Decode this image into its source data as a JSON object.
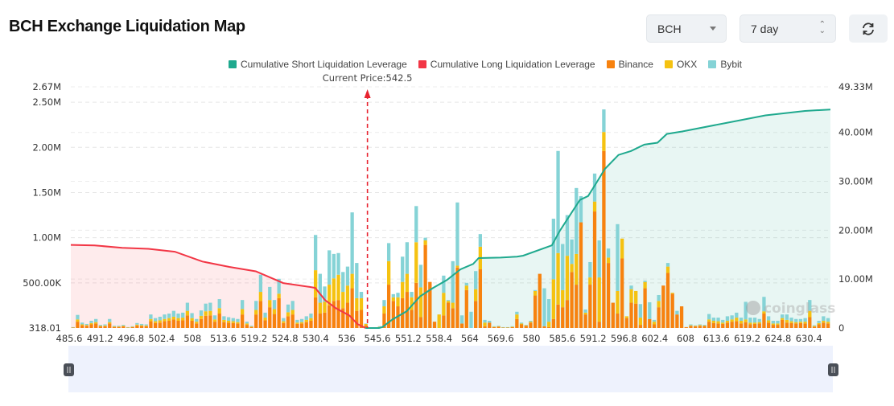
{
  "header": {
    "title": "BCH Exchange Liquidation Map",
    "symbol_select": "BCH",
    "range_select": "7 day",
    "refresh_icon": "refresh-icon"
  },
  "colors": {
    "short_cum": "#1fa98e",
    "long_cum": "#f23645",
    "binance": "#f7820f",
    "okx": "#f5c211",
    "bybit": "#85d3d6"
  },
  "chart_data": {
    "type": "bar",
    "legend": [
      "Cumulative Short Liquidation Leverage",
      "Cumulative Long Liquidation Leverage",
      "Binance",
      "OKX",
      "Bybit"
    ],
    "legend_position": "top",
    "current_price_label": "Current Price:542.5",
    "current_price": 542.5,
    "x_ticks": [
      "485.6",
      "491.2",
      "496.8",
      "502.4",
      "508",
      "513.6",
      "519.2",
      "524.8",
      "530.4",
      "536",
      "545.6",
      "551.2",
      "558.4",
      "564",
      "569.6",
      "580",
      "585.6",
      "591.2",
      "596.8",
      "602.4",
      "608",
      "613.6",
      "619.2",
      "624.8",
      "630.4"
    ],
    "y_left_ticks": [
      {
        "label": "318.01",
        "value": 0
      },
      {
        "label": "500.00K",
        "value": 500000
      },
      {
        "label": "1.00M",
        "value": 1000000
      },
      {
        "label": "1.50M",
        "value": 1500000
      },
      {
        "label": "2.00M",
        "value": 2000000
      },
      {
        "label": "2.50M",
        "value": 2500000
      },
      {
        "label": "2.67M",
        "value": 2670000
      }
    ],
    "y_left_range": [
      318.01,
      2670000
    ],
    "y_right_ticks": [
      {
        "label": "0",
        "value": 0
      },
      {
        "label": "10.00M",
        "value": 10000000
      },
      {
        "label": "20.00M",
        "value": 20000000
      },
      {
        "label": "30.00M",
        "value": 30000000
      },
      {
        "label": "40.00M",
        "value": 40000000
      },
      {
        "label": "49.33M",
        "value": 49330000
      }
    ],
    "y_right_range": [
      0,
      49330000
    ],
    "grid": true,
    "bar_series_order": [
      "Binance",
      "OKX",
      "Bybit"
    ],
    "bars_thousands": [
      [
        5,
        3,
        2
      ],
      [
        70,
        25,
        50
      ],
      [
        30,
        10,
        20
      ],
      [
        25,
        8,
        12
      ],
      [
        40,
        15,
        25
      ],
      [
        50,
        15,
        35
      ],
      [
        18,
        7,
        10
      ],
      [
        20,
        8,
        12
      ],
      [
        50,
        15,
        35
      ],
      [
        12,
        5,
        8
      ],
      [
        12,
        5,
        8
      ],
      [
        18,
        7,
        10
      ],
      [
        5,
        2,
        3
      ],
      [
        10,
        4,
        6
      ],
      [
        28,
        10,
        17
      ],
      [
        22,
        8,
        15
      ],
      [
        20,
        8,
        12
      ],
      [
        75,
        25,
        50
      ],
      [
        55,
        20,
        35
      ],
      [
        60,
        25,
        40
      ],
      [
        75,
        25,
        50
      ],
      [
        80,
        30,
        50
      ],
      [
        95,
        30,
        65
      ],
      [
        80,
        30,
        50
      ],
      [
        85,
        30,
        55
      ],
      [
        140,
        50,
        90
      ],
      [
        80,
        30,
        55
      ],
      [
        50,
        20,
        30
      ],
      [
        100,
        35,
        60
      ],
      [
        135,
        50,
        85
      ],
      [
        140,
        50,
        90
      ],
      [
        70,
        25,
        45
      ],
      [
        160,
        60,
        100
      ],
      [
        65,
        25,
        40
      ],
      [
        60,
        20,
        40
      ],
      [
        55,
        20,
        35
      ],
      [
        50,
        15,
        35
      ],
      [
        150,
        60,
        100
      ],
      [
        35,
        15,
        20
      ],
      [
        12,
        5,
        8
      ],
      [
        150,
        50,
        100
      ],
      [
        300,
        100,
        190
      ],
      [
        85,
        30,
        55
      ],
      [
        230,
        80,
        145
      ],
      [
        155,
        55,
        100
      ],
      [
        330,
        50,
        165
      ],
      [
        55,
        20,
        35
      ],
      [
        130,
        45,
        85
      ],
      [
        150,
        50,
        100
      ],
      [
        45,
        15,
        30
      ],
      [
        50,
        15,
        35
      ],
      [
        65,
        25,
        40
      ],
      [
        80,
        30,
        50
      ],
      [
        340,
        300,
        390
      ],
      [
        160,
        120,
        320
      ],
      [
        170,
        120,
        170
      ],
      [
        250,
        230,
        380
      ],
      [
        300,
        250,
        270
      ],
      [
        310,
        280,
        240
      ],
      [
        220,
        180,
        220
      ],
      [
        280,
        190,
        210
      ],
      [
        440,
        160,
        680
      ],
      [
        190,
        140,
        390
      ],
      [
        200,
        130,
        70
      ],
      [
        30,
        15,
        5
      ],
      [
        0,
        0,
        0
      ],
      [
        0,
        0,
        0
      ],
      [
        10,
        5,
        5
      ],
      [
        160,
        80,
        70
      ],
      [
        480,
        260,
        200
      ],
      [
        300,
        40,
        35
      ],
      [
        240,
        100,
        50
      ],
      [
        330,
        180,
        280
      ],
      [
        400,
        200,
        350
      ],
      [
        200,
        140,
        60
      ],
      [
        500,
        450,
        400
      ],
      [
        120,
        330,
        250
      ],
      [
        920,
        50,
        30
      ],
      [
        510,
        0,
        0
      ],
      [
        70,
        0,
        0
      ],
      [
        0,
        150,
        0
      ],
      [
        140,
        250,
        190
      ],
      [
        280,
        20,
        10
      ],
      [
        220,
        60,
        460
      ],
      [
        670,
        20,
        700
      ],
      [
        50,
        0,
        90
      ],
      [
        420,
        50,
        30
      ],
      [
        0,
        0,
        180
      ],
      [
        300,
        130,
        200
      ],
      [
        650,
        250,
        140
      ],
      [
        20,
        40,
        30
      ],
      [
        60,
        0,
        20
      ],
      [
        10,
        5,
        5
      ],
      [
        15,
        5,
        5
      ],
      [
        5,
        3,
        2
      ],
      [
        5,
        3,
        2
      ],
      [
        10,
        5,
        5
      ],
      [
        100,
        50,
        30
      ],
      [
        40,
        10,
        10
      ],
      [
        25,
        5,
        5
      ],
      [
        60,
        10,
        10
      ],
      [
        360,
        50,
        10
      ],
      [
        600,
        0,
        0
      ],
      [
        20,
        0,
        420
      ],
      [
        10,
        60,
        250
      ],
      [
        100,
        440,
        670
      ],
      [
        260,
        570,
        1130
      ],
      [
        230,
        190,
        510
      ],
      [
        310,
        490,
        450
      ],
      [
        620,
        90,
        270
      ],
      [
        480,
        340,
        730
      ],
      [
        1170,
        0,
        290
      ],
      [
        150,
        20,
        35
      ],
      [
        480,
        80,
        170
      ],
      [
        1290,
        110,
        310
      ],
      [
        70,
        490,
        410
      ],
      [
        1960,
        210,
        250
      ],
      [
        720,
        60,
        100
      ],
      [
        280,
        0,
        0
      ],
      [
        160,
        250,
        740
      ],
      [
        770,
        220,
        0
      ],
      [
        110,
        20,
        0
      ],
      [
        280,
        150,
        40
      ],
      [
        270,
        140,
        0
      ],
      [
        35,
        80,
        150
      ],
      [
        440,
        70,
        15
      ],
      [
        100,
        0,
        185
      ],
      [
        40,
        30,
        20
      ],
      [
        230,
        70,
        65
      ],
      [
        470,
        0,
        0
      ],
      [
        610,
        70,
        40
      ],
      [
        380,
        10,
        0
      ],
      [
        150,
        0,
        40
      ],
      [
        240,
        0,
        0
      ],
      [
        10,
        0,
        0
      ],
      [
        25,
        5,
        10
      ],
      [
        20,
        5,
        5
      ],
      [
        25,
        8,
        7
      ],
      [
        22,
        5,
        8
      ],
      [
        70,
        25,
        60
      ],
      [
        55,
        25,
        35
      ],
      [
        50,
        25,
        40
      ],
      [
        45,
        15,
        30
      ],
      [
        60,
        20,
        50
      ],
      [
        70,
        25,
        45
      ],
      [
        75,
        40,
        55
      ],
      [
        50,
        30,
        35
      ],
      [
        65,
        30,
        195
      ],
      [
        40,
        20,
        55
      ],
      [
        45,
        15,
        55
      ],
      [
        50,
        15,
        35
      ],
      [
        160,
        25,
        160
      ],
      [
        60,
        25,
        45
      ],
      [
        35,
        15,
        30
      ],
      [
        35,
        15,
        30
      ],
      [
        90,
        20,
        40
      ],
      [
        60,
        30,
        60
      ],
      [
        55,
        20,
        40
      ],
      [
        50,
        15,
        35
      ],
      [
        55,
        15,
        30
      ],
      [
        50,
        20,
        40
      ],
      [
        120,
        70,
        120
      ],
      [
        15,
        8,
        7
      ],
      [
        40,
        15,
        25
      ],
      [
        60,
        20,
        50
      ],
      [
        50,
        20,
        40
      ]
    ],
    "lines": [
      {
        "name": "Cumulative Long Liquidation Leverage",
        "unit": "millions",
        "points": [
          [
            485.6,
            17.0
          ],
          [
            490.2,
            16.9
          ],
          [
            495.2,
            16.4
          ],
          [
            500.0,
            16.2
          ],
          [
            504.8,
            15.6
          ],
          [
            509.8,
            13.6
          ],
          [
            514.7,
            12.5
          ],
          [
            519.5,
            11.6
          ],
          [
            524.5,
            9.2
          ],
          [
            529.3,
            8.4
          ],
          [
            530.3,
            8.2
          ],
          [
            532.1,
            5.7
          ],
          [
            534.0,
            4.1
          ],
          [
            536.8,
            2.6
          ],
          [
            539.4,
            0.8
          ],
          [
            541.9,
            0.0
          ]
        ]
      },
      {
        "name": "Cumulative Short Liquidation Leverage",
        "unit": "millions",
        "points": [
          [
            541.9,
            0.0
          ],
          [
            545.9,
            0.0
          ],
          [
            546.5,
            0.2
          ],
          [
            548.4,
            1.8
          ],
          [
            550.9,
            3.4
          ],
          [
            554.0,
            6.5
          ],
          [
            557.0,
            8.2
          ],
          [
            559.8,
            9.8
          ],
          [
            562.3,
            12.0
          ],
          [
            564.6,
            13.1
          ],
          [
            565.6,
            14.3
          ],
          [
            569.6,
            14.4
          ],
          [
            575.1,
            14.6
          ],
          [
            577.2,
            14.8
          ],
          [
            583.7,
            16.9
          ],
          [
            585.1,
            19.8
          ],
          [
            587.4,
            23.8
          ],
          [
            588.8,
            26.2
          ],
          [
            590.3,
            27.0
          ],
          [
            591.8,
            29.7
          ],
          [
            593.3,
            32.5
          ],
          [
            595.8,
            35.4
          ],
          [
            598.1,
            36.2
          ],
          [
            600.5,
            37.5
          ],
          [
            602.9,
            37.9
          ],
          [
            604.6,
            39.7
          ],
          [
            607.4,
            40.2
          ],
          [
            615.6,
            42.0
          ],
          [
            622.5,
            43.5
          ],
          [
            629.7,
            44.4
          ],
          [
            634.3,
            44.7
          ]
        ]
      }
    ],
    "watermark": "coinglass"
  }
}
